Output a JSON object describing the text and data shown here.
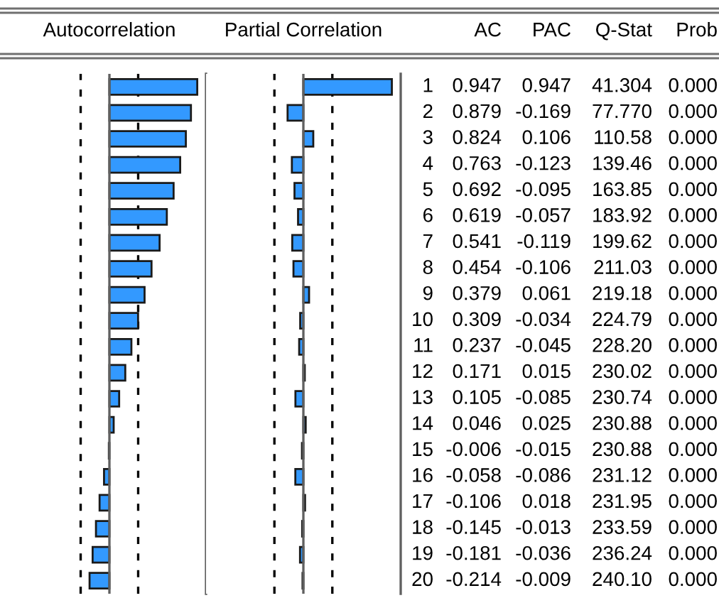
{
  "chart_data": [
    {
      "type": "bar",
      "orientation": "horizontal",
      "title": "Autocorrelation",
      "annotations": [
        "AC"
      ],
      "categories": [
        "1",
        "2",
        "3",
        "4",
        "5",
        "6",
        "7",
        "8",
        "9",
        "10",
        "11",
        "12",
        "13",
        "14",
        "15",
        "16",
        "17",
        "18",
        "19",
        "20"
      ],
      "values": [
        0.947,
        0.879,
        0.824,
        0.763,
        0.692,
        0.619,
        0.541,
        0.454,
        0.379,
        0.309,
        0.237,
        0.171,
        0.105,
        0.046,
        -0.006,
        -0.058,
        -0.106,
        -0.145,
        -0.181,
        -0.214
      ],
      "color": "#3399ff",
      "data_labels": true,
      "tick_labels": "y",
      "ref_lines": [
        {
          "axis": "x",
          "value": -0.31,
          "line_style": "dashed",
          "color": "#000000"
        },
        {
          "axis": "x",
          "value": 0.31,
          "line_style": "dashed",
          "color": "#000000"
        }
      ]
    },
    {
      "type": "bar",
      "orientation": "horizontal",
      "title": "Partial Correlation",
      "annotations": [
        "PAC"
      ],
      "categories": [
        "1",
        "2",
        "3",
        "4",
        "5",
        "6",
        "7",
        "8",
        "9",
        "10",
        "11",
        "12",
        "13",
        "14",
        "15",
        "16",
        "17",
        "18",
        "19",
        "20"
      ],
      "values": [
        0.947,
        -0.169,
        0.106,
        -0.123,
        -0.095,
        -0.057,
        -0.119,
        -0.106,
        0.061,
        -0.034,
        -0.045,
        0.015,
        -0.085,
        0.025,
        -0.015,
        -0.086,
        0.018,
        -0.013,
        -0.036,
        -0.009
      ],
      "color": "#3399ff",
      "data_labels": true,
      "tick_labels": false,
      "ref_lines": [
        {
          "axis": "x",
          "value": -0.31,
          "line_style": "dashed",
          "color": "#000000"
        },
        {
          "axis": "x",
          "value": 0.31,
          "line_style": "dashed",
          "color": "#000000"
        }
      ]
    },
    {
      "type": "other",
      "title": "Q-Stat",
      "annotations": [
        "41.304",
        "77.770",
        "110.58",
        "139.46",
        "163.85",
        "183.92",
        "199.62",
        "211.03",
        "219.18",
        "224.79",
        "228.20",
        "230.02",
        "230.74",
        "230.88",
        "230.88",
        "231.12",
        "231.95",
        "233.59",
        "236.24",
        "240.10"
      ]
    },
    {
      "type": "other",
      "title": "Prob",
      "annotations": [
        "0.000",
        "0.000",
        "0.000",
        "0.000",
        "0.000",
        "0.000",
        "0.000",
        "0.000",
        "0.000",
        "0.000",
        "0.000",
        "0.000",
        "0.000",
        "0.000",
        "0.000",
        "0.000",
        "0.000",
        "0.000",
        "0.000",
        "0.000"
      ]
    }
  ]
}
